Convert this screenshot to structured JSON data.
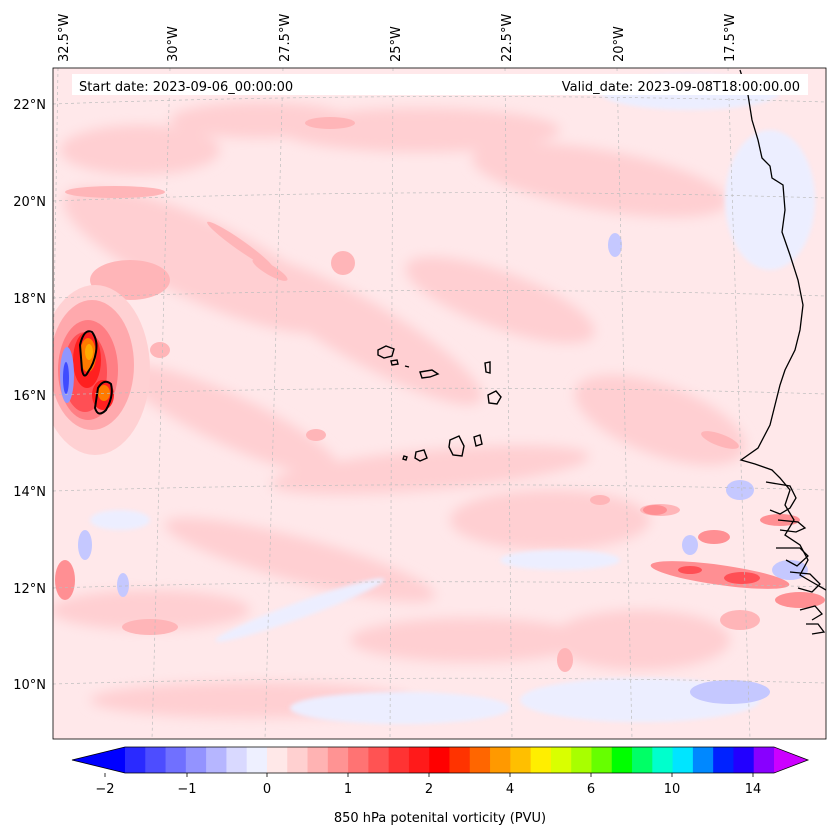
{
  "header": {
    "start_date": "Start date: 2023-09-06_00:00:00",
    "valid_date": "Valid_date: 2023-09-08T18:00:00.00"
  },
  "map": {
    "lon_labels": [
      "32.5°W",
      "30°W",
      "27.5°W",
      "25°W",
      "22.5°W",
      "20°W",
      "17.5°W"
    ],
    "lat_labels": [
      "22°N",
      "20°N",
      "18°N",
      "16°N",
      "14°N",
      "12°N",
      "10°N"
    ]
  },
  "colorbar": {
    "tick_labels": [
      "−2",
      "−1",
      "0",
      "1",
      "2",
      "4",
      "6",
      "10",
      "14"
    ],
    "label": "850 hPa potenital vorticity (PVU)",
    "colors": [
      "#0000ff",
      "#2a2aff",
      "#4d4dff",
      "#7070ff",
      "#9393ff",
      "#b6b6ff",
      "#d9d9ff",
      "#eef0ff",
      "#ffe8e8",
      "#ffd0d0",
      "#ffb3b3",
      "#ff9393",
      "#ff7373",
      "#ff5353",
      "#ff3333",
      "#ff1a1a",
      "#ff0000",
      "#ff3300",
      "#ff6600",
      "#ff9900",
      "#ffbf00",
      "#ffee00",
      "#d9ff00",
      "#a8ff00",
      "#66ff00",
      "#00ff00",
      "#00ff66",
      "#00ffcc",
      "#00e5ff",
      "#0088ff",
      "#0022ff",
      "#2200ff",
      "#8800ff",
      "#cc00ff"
    ]
  }
}
